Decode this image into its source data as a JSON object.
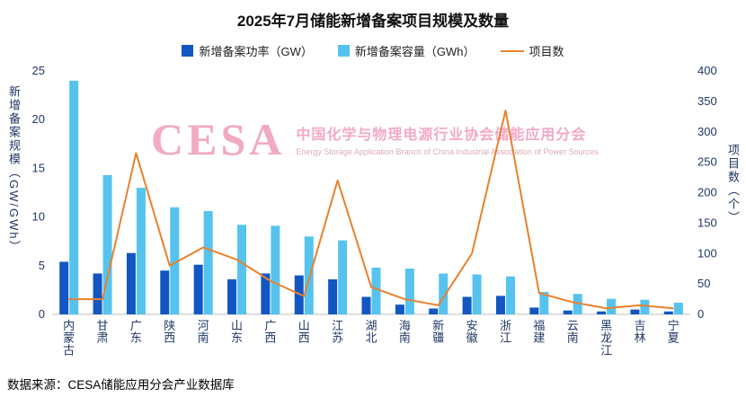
{
  "title": "2025年7月储能新增备案项目规模及数量",
  "legend": {
    "power": "新增备案功率（GW）",
    "capacity": "新增备案容量（GWh）",
    "projects": "项目数"
  },
  "colors": {
    "power": "#1256C2",
    "capacity": "#56C3EE",
    "projects": "#E8812C",
    "axis_text": "#203864",
    "baseline": "#BFBFBF"
  },
  "watermark": {
    "logo": "CESA",
    "cn": "中国化学与物理电源行业协会储能应用分会",
    "en": "Energy Storage Application Branch of China Industrial Association of Power Sources"
  },
  "source": "数据来源：CESA储能应用分会产业数据库",
  "chart_data": {
    "type": "bar",
    "subtype": "grouped-bars-with-line",
    "title": "2025年7月储能新增备案项目规模及数量",
    "categories": [
      "内蒙古",
      "甘肃",
      "广东",
      "陕西",
      "河南",
      "山东",
      "广西",
      "山西",
      "江苏",
      "湖北",
      "海南",
      "新疆",
      "安徽",
      "浙江",
      "福建",
      "云南",
      "黑龙江",
      "吉林",
      "宁夏"
    ],
    "series": [
      {
        "name": "新增备案功率（GW）",
        "type": "bar",
        "axis": "left",
        "values": [
          5.4,
          4.2,
          6.3,
          4.5,
          5.1,
          3.6,
          4.2,
          4.0,
          3.6,
          1.8,
          1.0,
          0.6,
          1.8,
          1.9,
          0.7,
          0.4,
          0.3,
          0.5,
          0.3
        ]
      },
      {
        "name": "新增备案容量（GWh）",
        "type": "bar",
        "axis": "left",
        "values": [
          24.0,
          14.3,
          13.0,
          11.0,
          10.6,
          9.2,
          9.1,
          8.0,
          7.6,
          4.8,
          4.7,
          4.2,
          4.1,
          3.9,
          2.3,
          2.1,
          1.6,
          1.5,
          1.2
        ]
      },
      {
        "name": "项目数",
        "type": "line",
        "axis": "right",
        "values": [
          25,
          25,
          265,
          80,
          110,
          90,
          55,
          30,
          220,
          45,
          25,
          15,
          100,
          335,
          35,
          20,
          10,
          15,
          10
        ]
      }
    ],
    "ylabel_left": "新增备案规模（GW/GWh）",
    "ylabel_right": "项目数（个）",
    "ylim_left": [
      0,
      25
    ],
    "ylim_right": [
      0,
      400
    ],
    "yticks_left": [
      0,
      5,
      10,
      15,
      20,
      25
    ],
    "yticks_right": [
      0,
      50,
      100,
      150,
      200,
      250,
      300,
      350,
      400
    ],
    "grid": false,
    "legend_position": "top"
  }
}
